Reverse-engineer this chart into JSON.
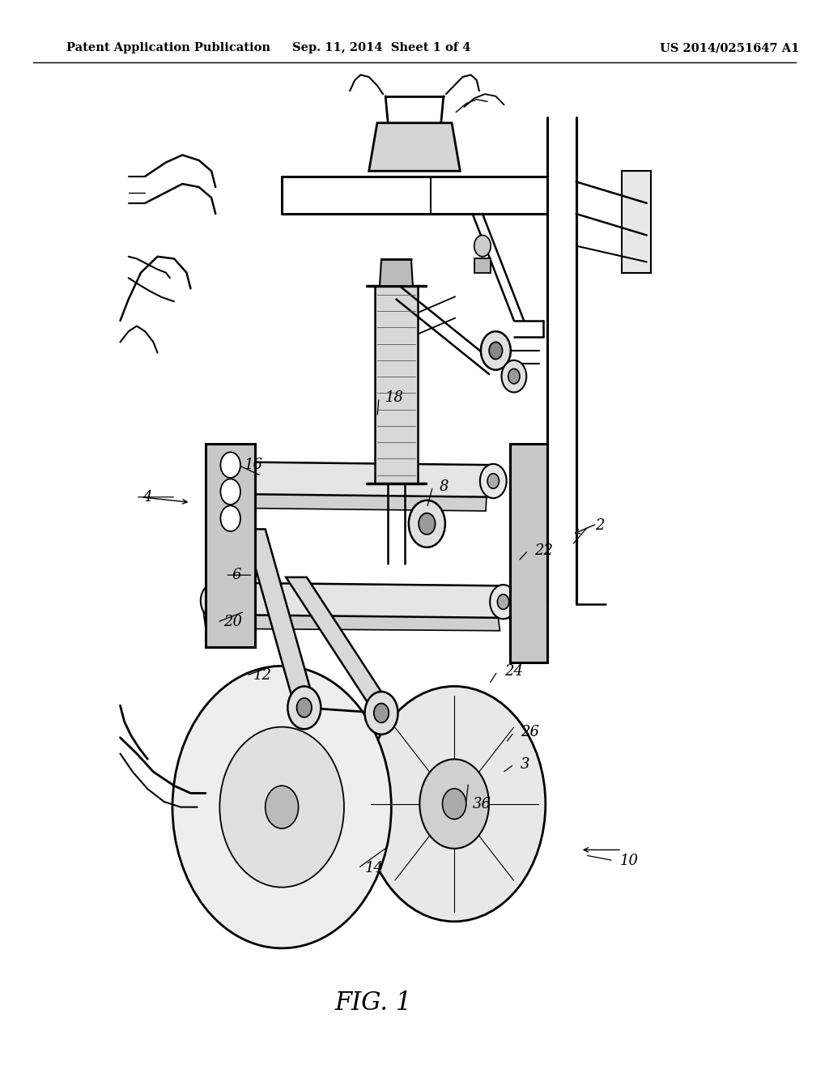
{
  "background_color": "#ffffff",
  "header_left": "Patent Application Publication",
  "header_center": "Sep. 11, 2014  Sheet 1 of 4",
  "header_right": "US 2014/0251647 A1",
  "footer_label": "FIG. 1",
  "header_fontsize": 10.5,
  "footer_fontsize": 22,
  "label_fontsize": 13
}
